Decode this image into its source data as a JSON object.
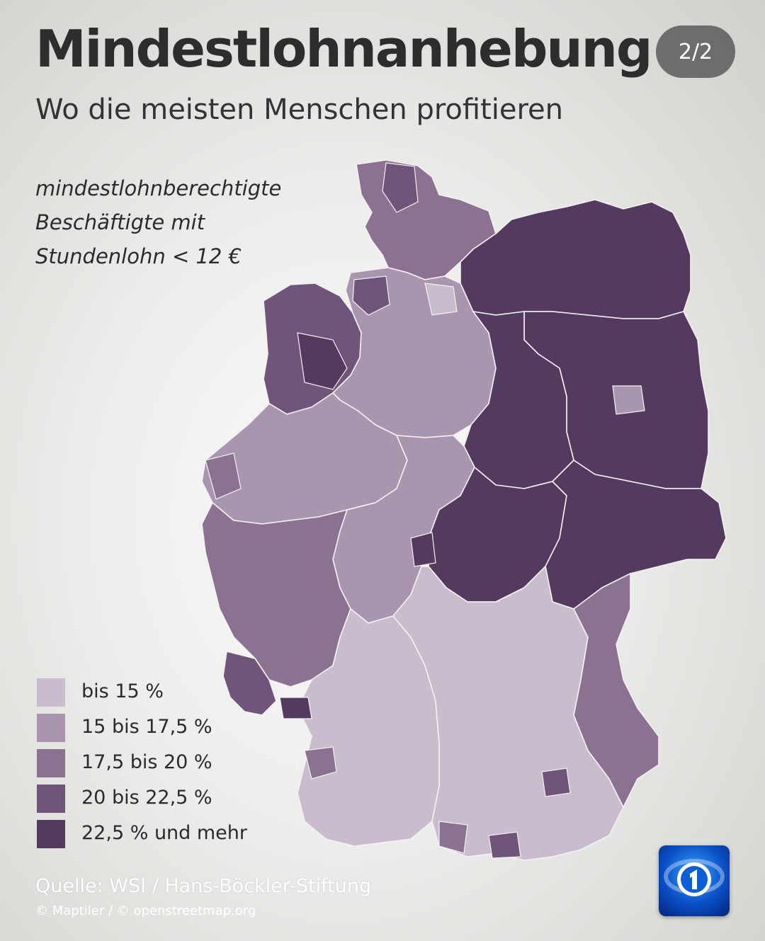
{
  "header": {
    "title": "Mindestlohnanhebung",
    "subtitle": "Wo die meisten Menschen profitieren",
    "page_indicator": "2/2"
  },
  "caption": {
    "lines": [
      "mindestlohnberechtigte",
      "Beschäftigte mit",
      "Stundenlohn < 12 €"
    ]
  },
  "legend": {
    "items": [
      {
        "label": "bis 15 %",
        "color": "#c9bccd"
      },
      {
        "label": "15 bis 17,5 %",
        "color": "#a996ae"
      },
      {
        "label": "17,5 bis 20 %",
        "color": "#8c7291"
      },
      {
        "label": "20 bis 22,5 %",
        "color": "#70557a"
      },
      {
        "label": "22,5 % und mehr",
        "color": "#553a60"
      }
    ]
  },
  "footer": {
    "source": "Quelle: WSI / Hans-Böckler-Stiftung",
    "copyright": "© Maptiler / © openstreetmap.org"
  },
  "map": {
    "regions": [
      {
        "name": "Schleswig-Holstein",
        "class": 2
      },
      {
        "name": "Niedersachsen Nordwest",
        "class": 3
      },
      {
        "name": "Niedersachsen",
        "class": 1
      },
      {
        "name": "Mecklenburg-Vorpommern",
        "class": 4
      },
      {
        "name": "Brandenburg",
        "class": 4
      },
      {
        "name": "Sachsen-Anhalt",
        "class": 4
      },
      {
        "name": "Nordrhein-Westfalen",
        "class": 1
      },
      {
        "name": "Hessen",
        "class": 1
      },
      {
        "name": "Thüringen",
        "class": 4
      },
      {
        "name": "Sachsen",
        "class": 4
      },
      {
        "name": "Rheinland-Pfalz",
        "class": 2
      },
      {
        "name": "Saarland",
        "class": 3
      },
      {
        "name": "Baden-Württemberg",
        "class": 0
      },
      {
        "name": "Bayern",
        "class": 0
      },
      {
        "name": "Ostbayern",
        "class": 2
      }
    ]
  },
  "logo": {
    "icon": "ard-das-erste-logo"
  }
}
